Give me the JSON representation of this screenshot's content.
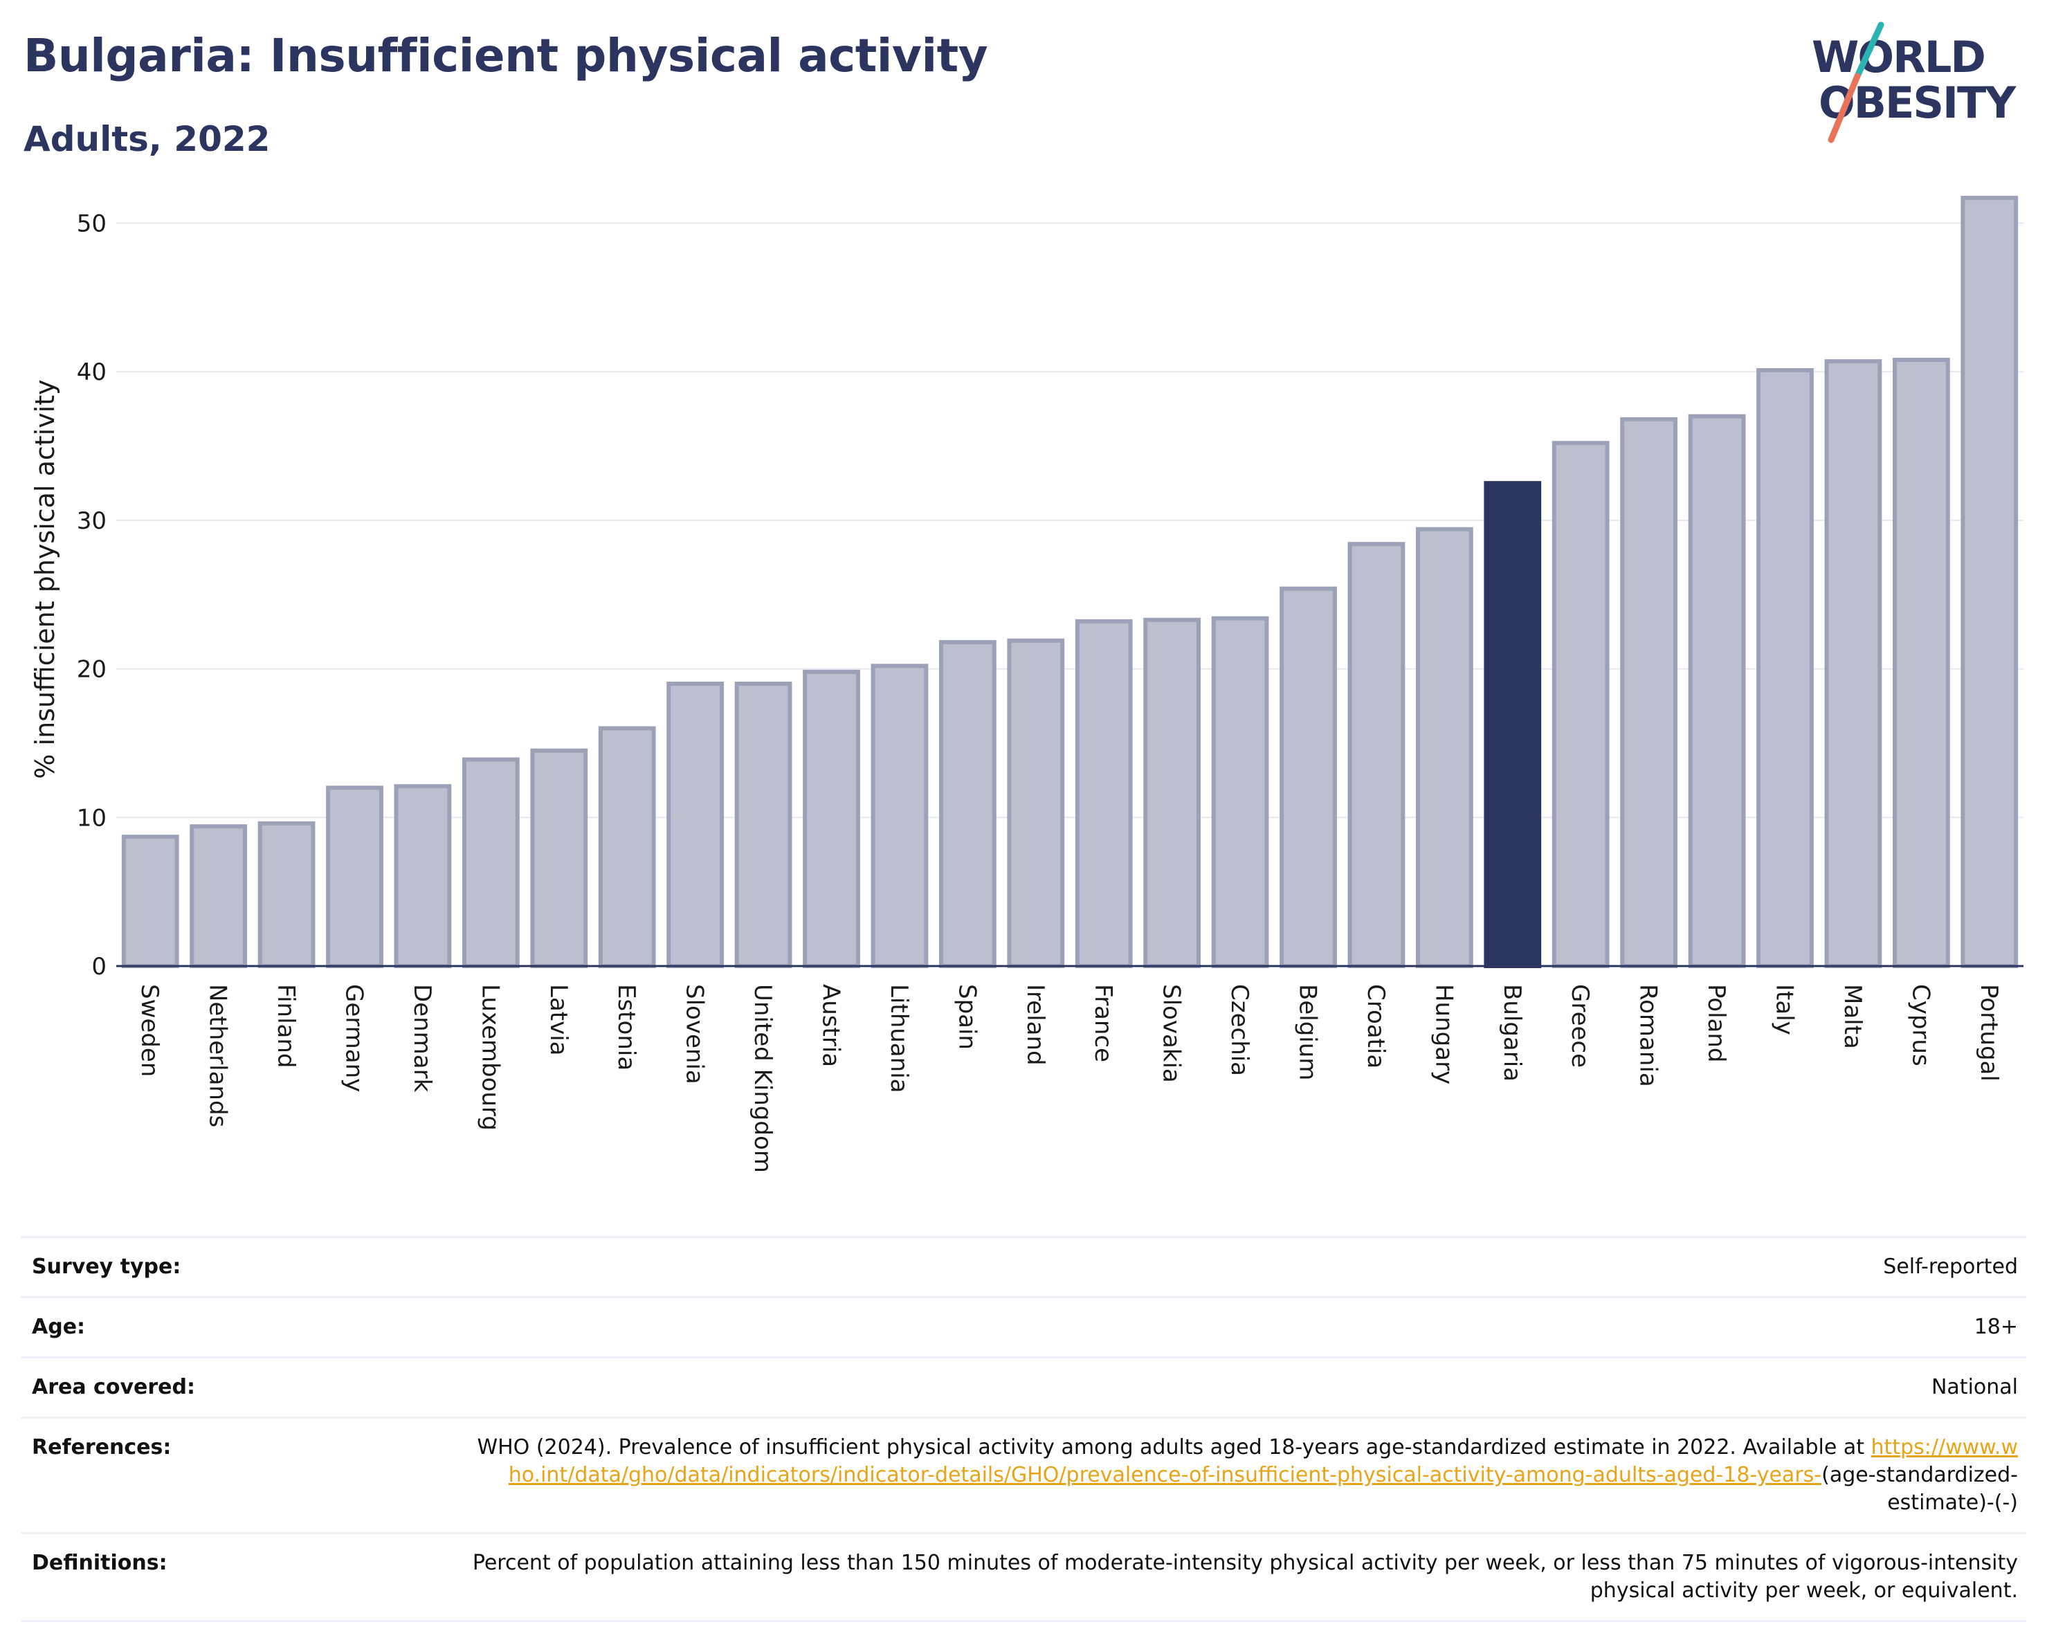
{
  "header": {
    "title": "Bulgaria: Insufficient physical activity",
    "subtitle": "Adults, 2022",
    "logo_line1_a": "W",
    "logo_line1_o": "O",
    "logo_line1_b": "RLD",
    "logo_line2_a": "O",
    "logo_line2_b": "BESITY"
  },
  "colors": {
    "highlight": "#2b3560",
    "bar_fill": "#bcc0ce",
    "bar_stroke": "#9ba1b6",
    "logo_teal": "#2ab3b0",
    "logo_coral": "#e8735a",
    "link": "#e8a317"
  },
  "chart_data": {
    "type": "bar",
    "ylabel": "% insufficient physical activity",
    "ylim": [
      0,
      53
    ],
    "yticks": [
      0,
      10,
      20,
      30,
      40,
      50
    ],
    "grid": true,
    "highlight": "Bulgaria",
    "categories": [
      "Sweden",
      "Netherlands",
      "Finland",
      "Germany",
      "Denmark",
      "Luxembourg",
      "Latvia",
      "Estonia",
      "Slovenia",
      "United Kingdom",
      "Austria",
      "Lithuania",
      "Spain",
      "Ireland",
      "France",
      "Slovakia",
      "Czechia",
      "Belgium",
      "Croatia",
      "Hungary",
      "Bulgaria",
      "Greece",
      "Romania",
      "Poland",
      "Italy",
      "Malta",
      "Cyprus",
      "Portugal"
    ],
    "values": [
      8.7,
      9.4,
      9.6,
      12.0,
      12.1,
      13.9,
      14.5,
      16.0,
      19.0,
      19.0,
      19.8,
      20.2,
      21.8,
      21.9,
      23.2,
      23.3,
      23.4,
      25.4,
      28.4,
      29.4,
      32.5,
      35.2,
      36.8,
      37.0,
      40.1,
      40.7,
      40.8,
      51.7
    ]
  },
  "info": {
    "survey_type_label": "Survey type:",
    "survey_type_value": "Self-reported",
    "age_label": "Age:",
    "age_value": "18+",
    "area_label": "Area covered:",
    "area_value": "National",
    "references_label": "References:",
    "references_text": "WHO (2024). Prevalence of insufficient physical activity among adults aged 18-years age-standardized estimate in 2022. Available at",
    "references_link": "https://www.who.int/data/gho/data/indicators/indicator-details/GHO/prevalence-of-insufficient-physical-activity-among-adults-aged-18-years-",
    "references_suffix": "(age-standardized-estimate)-(-)",
    "definitions_label": "Definitions:",
    "definitions_text": "Percent of population attaining less than 150 minutes of moderate-intensity physical activity per week, or less than 75 minutes of vigorous-intensity physical activity per week, or equivalent."
  }
}
